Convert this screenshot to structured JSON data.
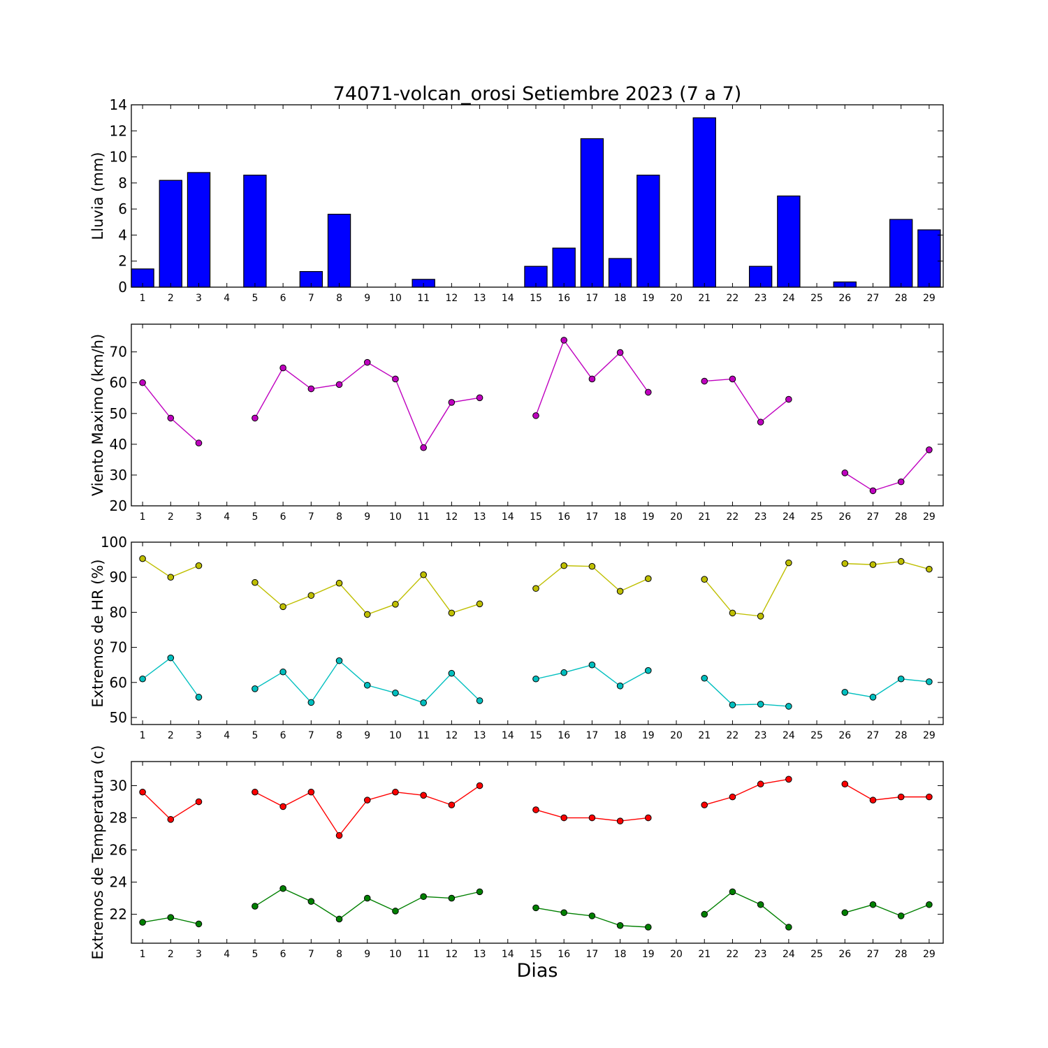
{
  "title": "74071-volcan_orosi Setiembre 2023  (7 a 7)",
  "xlabel": "Dias",
  "chart_data": [
    {
      "type": "bar",
      "id": "lluvia",
      "ylabel": "Lluvia (mm)",
      "ylim": [
        0,
        14
      ],
      "yticks": [
        0,
        2,
        4,
        6,
        8,
        10,
        12,
        14
      ],
      "color": "#0000ff",
      "x": [
        1,
        2,
        3,
        4,
        5,
        6,
        7,
        8,
        9,
        10,
        11,
        12,
        13,
        14,
        15,
        16,
        17,
        18,
        19,
        20,
        21,
        22,
        23,
        24,
        25,
        26,
        27,
        28,
        29
      ],
      "values": [
        1.4,
        8.2,
        8.8,
        null,
        8.6,
        0,
        1.2,
        5.6,
        0,
        0,
        0.6,
        0,
        0,
        null,
        1.6,
        3.0,
        11.4,
        2.2,
        8.6,
        null,
        13.0,
        null,
        1.6,
        7.0,
        null,
        0.4,
        0,
        5.2,
        4.4
      ]
    },
    {
      "type": "line",
      "id": "viento",
      "ylabel": "Viento Maximo (km/h)",
      "ylim": [
        20,
        79
      ],
      "yticks": [
        20,
        30,
        40,
        50,
        60,
        70
      ],
      "x": [
        1,
        2,
        3,
        4,
        5,
        6,
        7,
        8,
        9,
        10,
        11,
        12,
        13,
        14,
        15,
        16,
        17,
        18,
        19,
        20,
        21,
        22,
        23,
        24,
        25,
        26,
        27,
        28,
        29
      ],
      "series": [
        {
          "color": "#bf00bf",
          "values": [
            60,
            48.5,
            40.4,
            null,
            48.5,
            64.8,
            58,
            59.4,
            66.6,
            61.2,
            38.9,
            53.6,
            55.1,
            null,
            49.3,
            73.8,
            61.2,
            69.8,
            56.9,
            null,
            60.5,
            61.2,
            47.2,
            54.6,
            null,
            30.7,
            24.9,
            27.8,
            38.2
          ]
        }
      ]
    },
    {
      "type": "line",
      "id": "hr",
      "ylabel": "Extremos de HR (%)",
      "ylim": [
        48,
        100
      ],
      "yticks": [
        50,
        60,
        70,
        80,
        90,
        100
      ],
      "x": [
        1,
        2,
        3,
        4,
        5,
        6,
        7,
        8,
        9,
        10,
        11,
        12,
        13,
        14,
        15,
        16,
        17,
        18,
        19,
        20,
        21,
        22,
        23,
        24,
        25,
        26,
        27,
        28,
        29
      ],
      "series": [
        {
          "color": "#bfbf00",
          "values": [
            95.3,
            90,
            93.3,
            null,
            88.5,
            81.6,
            84.8,
            88.3,
            79.4,
            82.3,
            90.7,
            79.8,
            82.4,
            null,
            86.8,
            93.3,
            93.1,
            86,
            89.6,
            null,
            89.4,
            79.8,
            78.9,
            94.1,
            null,
            93.9,
            93.6,
            94.5,
            92.3
          ]
        },
        {
          "color": "#00bfbf",
          "values": [
            61,
            67,
            55.8,
            null,
            58.2,
            63,
            54.3,
            66.2,
            59.2,
            57,
            54.2,
            62.6,
            54.8,
            null,
            61,
            62.8,
            65,
            59,
            63.4,
            null,
            61.2,
            53.6,
            53.8,
            53.2,
            null,
            57.2,
            55.8,
            61,
            60.2
          ]
        }
      ]
    },
    {
      "type": "line",
      "id": "temperatura",
      "ylabel": "Extremos de Temperatura (c)",
      "ylim": [
        20.2,
        31.5
      ],
      "yticks": [
        22,
        24,
        26,
        28,
        30
      ],
      "x": [
        1,
        2,
        3,
        4,
        5,
        6,
        7,
        8,
        9,
        10,
        11,
        12,
        13,
        14,
        15,
        16,
        17,
        18,
        19,
        20,
        21,
        22,
        23,
        24,
        25,
        26,
        27,
        28,
        29
      ],
      "series": [
        {
          "color": "#ff0000",
          "values": [
            29.6,
            27.9,
            29,
            null,
            29.6,
            28.7,
            29.6,
            26.9,
            29.1,
            29.6,
            29.4,
            28.8,
            30,
            null,
            28.5,
            28,
            28,
            27.8,
            28,
            null,
            28.8,
            29.3,
            30.1,
            30.4,
            null,
            30.1,
            29.1,
            29.3,
            29.3
          ]
        },
        {
          "color": "#008000",
          "values": [
            21.5,
            21.8,
            21.4,
            null,
            22.5,
            23.6,
            22.8,
            21.7,
            23,
            22.2,
            23.1,
            23,
            23.4,
            null,
            22.4,
            22.1,
            21.9,
            21.3,
            21.2,
            null,
            22,
            23.4,
            22.6,
            21.2,
            null,
            22.1,
            22.6,
            21.9,
            22.6
          ]
        }
      ]
    }
  ]
}
